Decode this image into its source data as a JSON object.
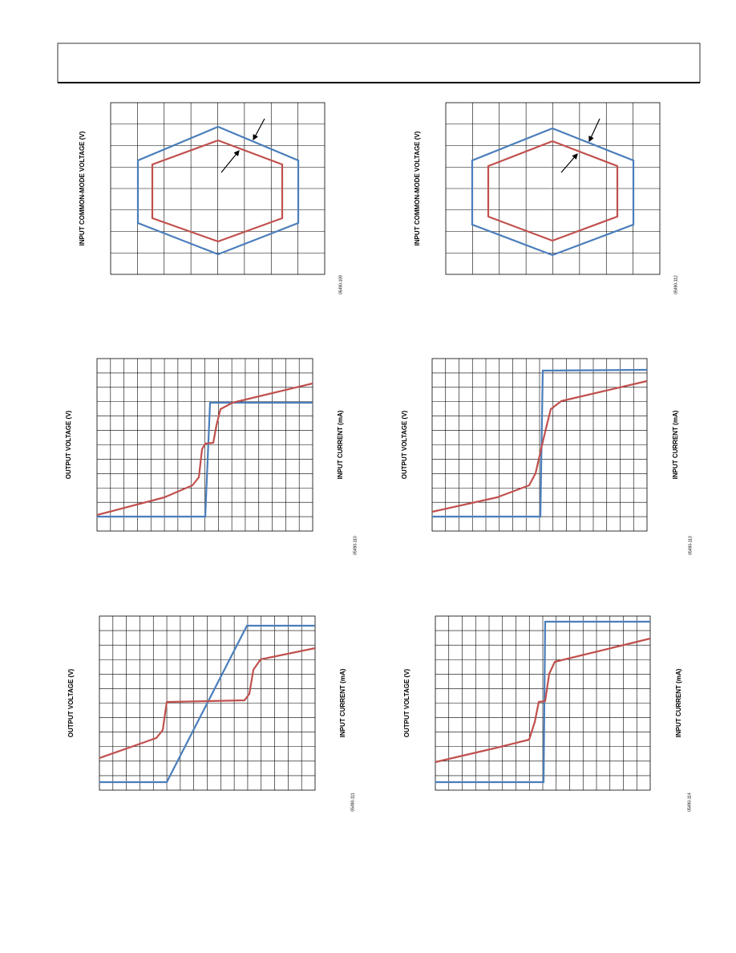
{
  "charts": [
    {
      "y_label": "INPUT COMMON-MODE VOLTAGE (V)",
      "code": "05490-109"
    },
    {
      "y_label": "INPUT COMMON-MODE VOLTAGE (V)",
      "code": "05490-112"
    },
    {
      "y_label": "OUTPUT VOLTAGE (V)",
      "y2_label": "INPUT CURRENT (mA)",
      "code": "05490-110"
    },
    {
      "y_label": "OUTPUT VOLTAGE (V)",
      "y2_label": "INPUT CURRENT (mA)",
      "code": "05490-113"
    },
    {
      "y_label": "OUTPUT VOLTAGE (V)",
      "y2_label": "INPUT CURRENT (mA)",
      "code": "05490-111"
    },
    {
      "y_label": "OUTPUT VOLTAGE (V)",
      "y2_label": "INPUT CURRENT (mA)",
      "code": "05490-114"
    }
  ]
}
